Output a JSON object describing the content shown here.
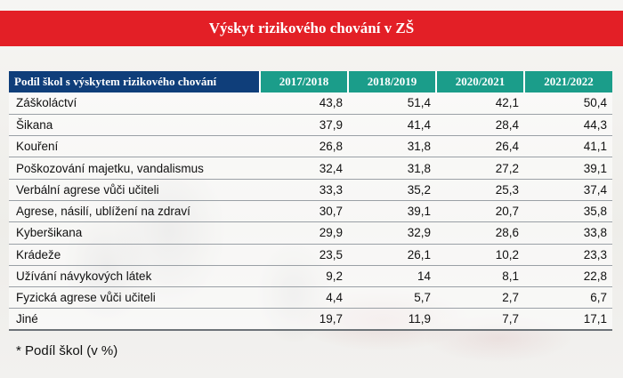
{
  "title": "Výskyt rizikového chování v ZŠ",
  "table": {
    "header": {
      "label": "Podíl škol s výskytem rizikového chování",
      "years": [
        "2017/2018",
        "2018/2019",
        "2020/2021",
        "2021/2022"
      ]
    },
    "rows": [
      {
        "label": "Záškoláctví",
        "values": [
          "43,8",
          "51,4",
          "42,1",
          "50,4"
        ]
      },
      {
        "label": "Šikana",
        "values": [
          "37,9",
          "41,4",
          "28,4",
          "44,3"
        ]
      },
      {
        "label": "Kouření",
        "values": [
          "26,8",
          "31,8",
          "26,4",
          "41,1"
        ]
      },
      {
        "label": "Poškozování majetku, vandalismus",
        "values": [
          "32,4",
          "31,8",
          "27,2",
          "39,1"
        ]
      },
      {
        "label": "Verbální agrese vůči učiteli",
        "values": [
          "33,3",
          "35,2",
          "25,3",
          "37,4"
        ]
      },
      {
        "label": "Agrese, násilí, ublížení na zdraví",
        "values": [
          "30,7",
          "39,1",
          "20,7",
          "35,8"
        ]
      },
      {
        "label": "Kyberšikana",
        "values": [
          "29,9",
          "32,9",
          "28,6",
          "33,8"
        ]
      },
      {
        "label": "Krádeže",
        "values": [
          "23,5",
          "26,1",
          "10,2",
          "23,3"
        ]
      },
      {
        "label": "Užívání návykových látek",
        "values": [
          "9,2",
          "14",
          "8,1",
          "22,8"
        ]
      },
      {
        "label": "Fyzická agrese vůči učiteli",
        "values": [
          "4,4",
          "5,7",
          "2,7",
          "6,7"
        ]
      },
      {
        "label": "Jiné",
        "values": [
          "19,7",
          "11,9",
          "7,7",
          "17,1"
        ]
      }
    ]
  },
  "footnote": "* Podíl škol (v %)",
  "colors": {
    "title_bar": "#e31f26",
    "header_label_bg": "#0f3e7a",
    "header_year_bg": "#1b9d8a"
  }
}
